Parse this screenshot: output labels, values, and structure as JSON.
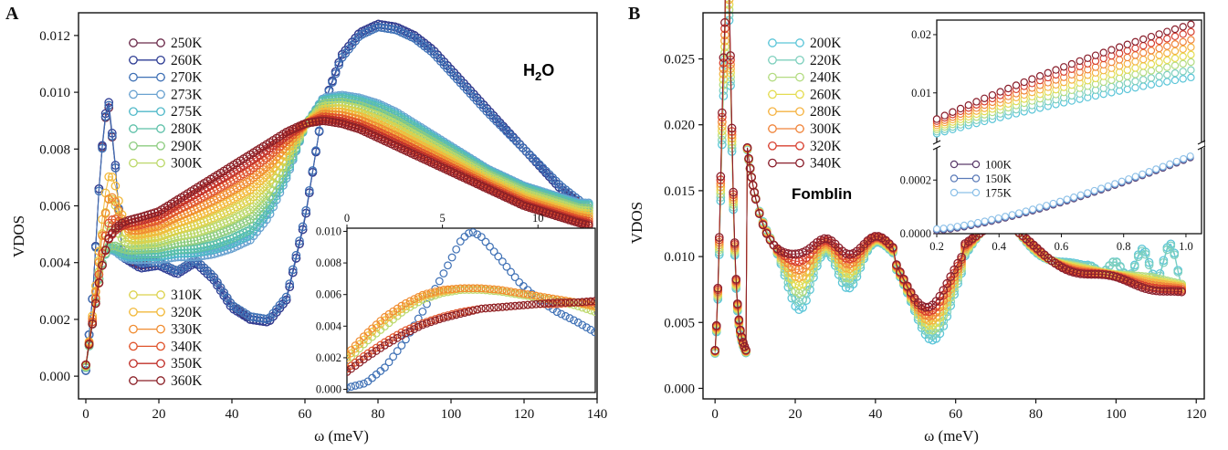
{
  "chart_data": [
    {
      "type": "scatter",
      "panel_label": "A",
      "xlabel": "ω (meV)",
      "ylabel": "VDOS",
      "xlim": [
        -2,
        140
      ],
      "ylim": [
        -0.0008,
        0.0128
      ],
      "xticks": [
        "0",
        "20",
        "40",
        "60",
        "80",
        "100",
        "120",
        "140"
      ],
      "yticks": [
        "0.000",
        "0.002",
        "0.004",
        "0.006",
        "0.008",
        "0.010",
        "0.012"
      ],
      "annotation": {
        "main": "H",
        "sub": "2",
        "tail": "O",
        "color": "#3a66b5"
      },
      "legend_upper": [
        "250K",
        "260K",
        "270K",
        "273K",
        "275K",
        "280K",
        "290K",
        "300K"
      ],
      "legend_lower": [
        "310K",
        "320K",
        "330K",
        "340K",
        "350K",
        "360K"
      ],
      "series": [
        {
          "name": "250K",
          "color": "#6b2a4a",
          "shape": "ice",
          "x": [
            0,
            2,
            4,
            6,
            8,
            10,
            15,
            20,
            25,
            30,
            35,
            40,
            45,
            50,
            55,
            60,
            65,
            70,
            75,
            80,
            85,
            90,
            95,
            100,
            110,
            120,
            130,
            138
          ],
          "y": [
            0.0002,
            0.003,
            0.0075,
            0.0098,
            0.0075,
            0.0042,
            0.0039,
            0.004,
            0.0037,
            0.0041,
            0.0035,
            0.0025,
            0.002,
            0.0019,
            0.0027,
            0.0055,
            0.0095,
            0.0113,
            0.0121,
            0.0124,
            0.0123,
            0.012,
            0.0115,
            0.0108,
            0.0094,
            0.008,
            0.0066,
            0.0058
          ]
        },
        {
          "name": "260K",
          "color": "#2e3d94",
          "shape": "ice",
          "x": [
            0,
            2,
            4,
            6,
            8,
            10,
            15,
            20,
            25,
            30,
            35,
            40,
            45,
            50,
            55,
            60,
            65,
            70,
            75,
            80,
            85,
            90,
            95,
            100,
            110,
            120,
            130,
            138
          ],
          "y": [
            0.0002,
            0.003,
            0.0075,
            0.01,
            0.0076,
            0.0042,
            0.0038,
            0.0039,
            0.0036,
            0.004,
            0.0034,
            0.0024,
            0.002,
            0.0019,
            0.0027,
            0.0055,
            0.0095,
            0.0113,
            0.0121,
            0.0124,
            0.0123,
            0.012,
            0.0115,
            0.0108,
            0.0094,
            0.008,
            0.0066,
            0.0057
          ]
        },
        {
          "name": "270K",
          "color": "#3e70b5",
          "shape": "ice",
          "x": [
            0,
            2,
            4,
            6,
            8,
            10,
            15,
            20,
            25,
            30,
            35,
            40,
            45,
            50,
            55,
            60,
            65,
            70,
            75,
            80,
            85,
            90,
            95,
            100,
            110,
            120,
            130,
            138
          ],
          "y": [
            0.0002,
            0.003,
            0.0074,
            0.0099,
            0.0075,
            0.0043,
            0.004,
            0.004,
            0.0037,
            0.0041,
            0.0035,
            0.0025,
            0.0021,
            0.002,
            0.0028,
            0.0056,
            0.0095,
            0.0112,
            0.012,
            0.0123,
            0.0122,
            0.0119,
            0.0114,
            0.0107,
            0.0093,
            0.008,
            0.0067,
            0.0059
          ]
        },
        {
          "name": "273K",
          "color": "#6aa2d0",
          "shape": "liquid",
          "Tf": 0.0
        },
        {
          "name": "275K",
          "color": "#4fb8c8",
          "shape": "liquid",
          "Tf": 0.06
        },
        {
          "name": "280K",
          "color": "#5cc0a8",
          "shape": "liquid",
          "Tf": 0.12
        },
        {
          "name": "290K",
          "color": "#8dcc80",
          "shape": "liquid",
          "Tf": 0.24
        },
        {
          "name": "300K",
          "color": "#bcd86a",
          "shape": "liquid",
          "Tf": 0.35
        },
        {
          "name": "310K",
          "color": "#dcd24c",
          "shape": "liquid",
          "Tf": 0.47
        },
        {
          "name": "320K",
          "color": "#f2ba3c",
          "shape": "liquid",
          "Tf": 0.59
        },
        {
          "name": "330K",
          "color": "#f08c30",
          "shape": "liquid",
          "Tf": 0.7
        },
        {
          "name": "340K",
          "color": "#e0542c",
          "shape": "liquid",
          "Tf": 0.82
        },
        {
          "name": "350K",
          "color": "#c0302a",
          "shape": "liquid",
          "Tf": 0.92
        },
        {
          "name": "360K",
          "color": "#8a1f26",
          "shape": "liquid",
          "Tf": 1.0
        }
      ],
      "inset": {
        "xlim": [
          0,
          13
        ],
        "ylim": [
          -0.0002,
          0.0102
        ],
        "xticks": [
          "0",
          "5",
          "10"
        ],
        "yticks": [
          "0.000",
          "0.002",
          "0.004",
          "0.006",
          "0.008",
          "0.010"
        ],
        "x_axis_position": "top",
        "series": [
          {
            "name": "ice",
            "color": "#3e70b5",
            "x": [
              0,
              1,
              2,
              3,
              4,
              5,
              6,
              6.5,
              7,
              8,
              9,
              10,
              11,
              12,
              13
            ],
            "y": [
              0.0001,
              0.0004,
              0.0014,
              0.003,
              0.005,
              0.0072,
              0.0095,
              0.01,
              0.0097,
              0.0083,
              0.0068,
              0.0057,
              0.0049,
              0.0043,
              0.0036
            ]
          },
          {
            "name": "300K",
            "color": "#bcd86a",
            "x": [
              0,
              1,
              2,
              3,
              4,
              5,
              6,
              7,
              8,
              9,
              10,
              11,
              12,
              13
            ],
            "y": [
              0.0018,
              0.003,
              0.004,
              0.005,
              0.0057,
              0.0061,
              0.0063,
              0.0063,
              0.0062,
              0.006,
              0.0058,
              0.0056,
              0.0053,
              0.0049
            ]
          },
          {
            "name": "320K",
            "color": "#f2ba3c",
            "x": [
              0,
              1,
              2,
              3,
              4,
              5,
              6,
              7,
              8,
              9,
              10,
              11,
              12,
              13
            ],
            "y": [
              0.002,
              0.0033,
              0.0044,
              0.0052,
              0.0059,
              0.0062,
              0.0064,
              0.0064,
              0.0063,
              0.0061,
              0.0059,
              0.0057,
              0.0055,
              0.0052
            ]
          },
          {
            "name": "330K",
            "color": "#f08c30",
            "x": [
              0,
              1,
              2,
              3,
              4,
              5,
              6,
              7,
              8,
              9,
              10,
              11,
              12,
              13
            ],
            "y": [
              0.0022,
              0.0035,
              0.0046,
              0.0054,
              0.006,
              0.0063,
              0.0064,
              0.0064,
              0.0063,
              0.0061,
              0.0059,
              0.0057,
              0.0055,
              0.0053
            ]
          },
          {
            "name": "340K",
            "color": "#e0542c",
            "x": [
              0,
              1,
              2,
              3,
              4,
              5,
              6,
              7,
              8,
              9,
              10,
              11,
              12,
              13
            ],
            "y": [
              0.0013,
              0.0022,
              0.003,
              0.0037,
              0.0042,
              0.0046,
              0.0049,
              0.0051,
              0.0052,
              0.0053,
              0.0054,
              0.0054,
              0.0055,
              0.0055
            ]
          },
          {
            "name": "360K",
            "color": "#8a1f26",
            "x": [
              0,
              1,
              2,
              3,
              4,
              5,
              6,
              7,
              8,
              9,
              10,
              11,
              12,
              13
            ],
            "y": [
              0.0011,
              0.002,
              0.0028,
              0.0035,
              0.0041,
              0.0045,
              0.0048,
              0.0051,
              0.0052,
              0.0053,
              0.0054,
              0.0055,
              0.0055,
              0.0056
            ]
          }
        ]
      }
    },
    {
      "type": "scatter",
      "panel_label": "B",
      "xlabel": "ω (meV)",
      "ylabel": "VDOS",
      "xlim": [
        -3,
        122
      ],
      "ylim": [
        -0.0008,
        0.0285
      ],
      "xticks": [
        "0",
        "20",
        "40",
        "60",
        "80",
        "100",
        "120"
      ],
      "yticks": [
        "0.000",
        "0.005",
        "0.010",
        "0.015",
        "0.020",
        "0.025"
      ],
      "annotation": {
        "main": "Fomblin",
        "color": "#cc2a4e"
      },
      "legend": [
        "200K",
        "220K",
        "240K",
        "260K",
        "280K",
        "300K",
        "320K",
        "340K"
      ],
      "series": [
        {
          "name": "200K",
          "color": "#5bc5d8",
          "Tf": 0.0
        },
        {
          "name": "220K",
          "color": "#7fd0be",
          "Tf": 0.14
        },
        {
          "name": "240K",
          "color": "#b4dc82",
          "Tf": 0.29
        },
        {
          "name": "260K",
          "color": "#e4dc52",
          "Tf": 0.43
        },
        {
          "name": "280K",
          "color": "#f5b342",
          "Tf": 0.57
        },
        {
          "name": "300K",
          "color": "#f0843a",
          "Tf": 0.71
        },
        {
          "name": "320K",
          "color": "#d84030",
          "Tf": 0.86
        },
        {
          "name": "340K",
          "color": "#8a1f2c",
          "Tf": 1.0
        }
      ],
      "inset": {
        "xlim": [
          0.2,
          1.05
        ],
        "xticks": [
          "0.2",
          "0.4",
          "0.6",
          "0.8",
          "1.0"
        ],
        "upper_ylim": [
          0.0015,
          0.0225
        ],
        "upper_yticks": [
          "0.01",
          "0.02"
        ],
        "lower_ylim": [
          0.0,
          0.00032
        ],
        "lower_yticks": [
          "0.0000",
          "0.0002"
        ],
        "legend": [
          "100K",
          "150K",
          "175K"
        ],
        "low_series": [
          {
            "name": "100K",
            "color": "#5a3a6a"
          },
          {
            "name": "150K",
            "color": "#5a7ab8"
          },
          {
            "name": "175K",
            "color": "#8cc0e8"
          }
        ]
      }
    }
  ]
}
